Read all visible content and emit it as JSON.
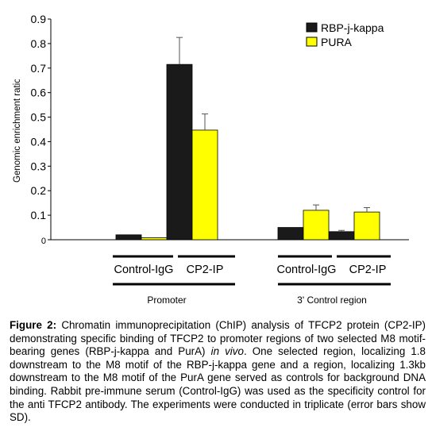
{
  "chart_data": {
    "type": "bar",
    "ylabel": "Genomic enrichment ratio",
    "ylim": [
      0,
      0.9
    ],
    "yticks": [
      "0",
      "0.1",
      "0.2",
      "0.3",
      "0.4",
      "0.5",
      "0.6",
      "0.7",
      "0.8",
      "0.9"
    ],
    "legend_position": "top-right",
    "categories": [
      "Promoter / Control-IgG",
      "Promoter / CP2-IP",
      "3' Control region / Control-IgG",
      "3' Control region / CP2-IP"
    ],
    "series": [
      {
        "name": "RBP-j-kappa",
        "color": "#1a1a1a",
        "values": [
          0.02,
          0.715,
          0.05,
          0.033
        ],
        "errors": [
          0,
          0.11,
          0,
          0.005
        ]
      },
      {
        "name": "PURA",
        "color": "#ffff00",
        "values": [
          0.008,
          0.447,
          0.12,
          0.113
        ],
        "errors": [
          0,
          0.066,
          0.022,
          0.018
        ]
      }
    ],
    "group_labels": [
      "Control-IgG",
      "CP2-IP",
      "Control-IgG",
      "CP2-IP"
    ],
    "region_labels": [
      "Promoter",
      "3' Control region"
    ]
  },
  "caption": {
    "figure_label": "Figure 2:",
    "text_1": " Chromatin immunoprecipitation (ChIP) analysis of TFCP2 protein (CP2-IP) demonstrating specific binding of TFCP2 to promoter regions of two selected M8 motif-bearing genes (RBP-j-kappa and PurA) ",
    "italic": "in vivo",
    "text_2": ". One selected region, localizing 1.8 downstream to the M8 motif of the RBP-j-kappa gene and a region, localizing 1.3kb downstream to the M8 motif of the PurA gene served as controls for background DNA binding. Rabbit pre-immune serum (Control-IgG) was used as the specificity control for the anti TFCP2 antibody. The experiments were conducted in triplicate (error bars show SD)."
  }
}
